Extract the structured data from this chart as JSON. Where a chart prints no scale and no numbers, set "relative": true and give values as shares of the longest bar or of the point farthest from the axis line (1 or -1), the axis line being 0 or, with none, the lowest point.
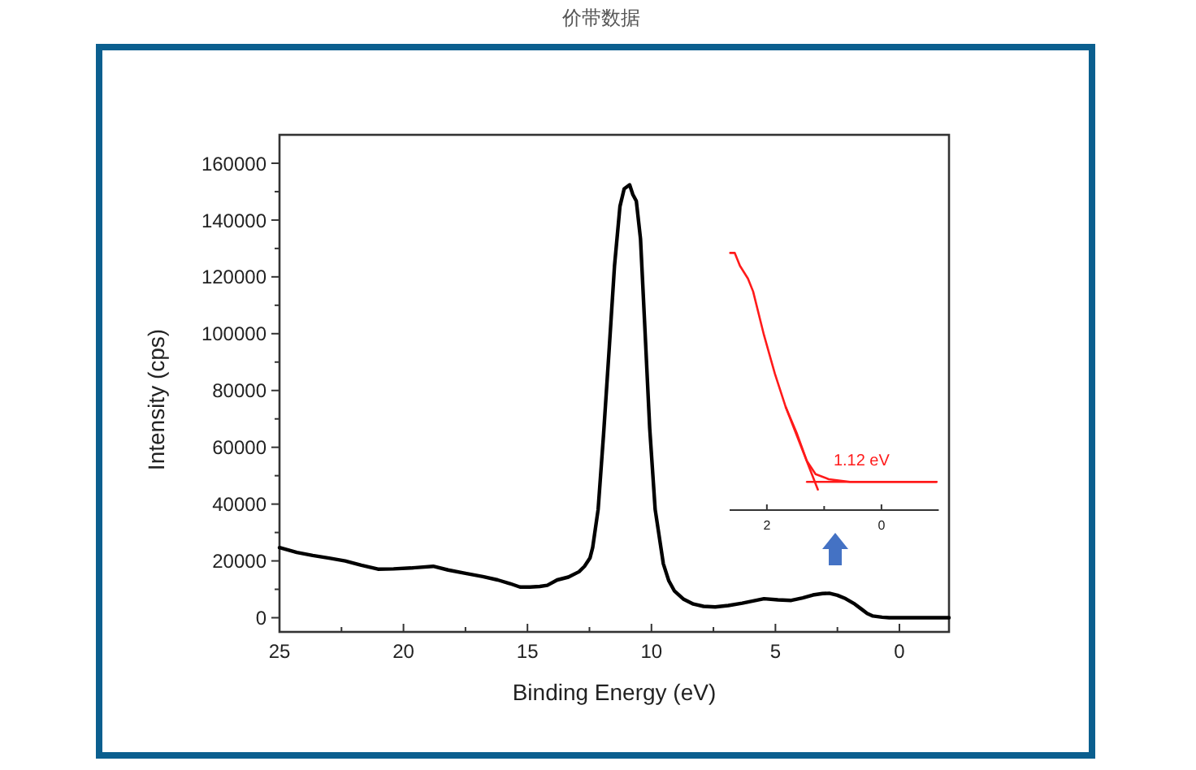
{
  "chart_data": [
    {
      "type": "line",
      "title": "价带数据",
      "xlabel": "Binding Energy (eV)",
      "ylabel": "Intensity (cps)",
      "x": [
        25,
        24.3,
        23.66,
        23,
        22.35,
        21.7,
        21.03,
        20.4,
        19.7,
        18.8,
        18.2,
        17.5,
        16.8,
        16.2,
        15.7,
        15.3,
        14.9,
        14.5,
        14.2,
        13.8,
        13.35,
        12.92,
        12.7,
        12.48,
        12.37,
        12.15,
        11.93,
        11.7,
        11.49,
        11.27,
        11.1,
        10.88,
        10.75,
        10.61,
        10.44,
        10.28,
        10.07,
        9.85,
        9.52,
        9.3,
        9.08,
        8.7,
        8.31,
        7.9,
        7.43,
        6.9,
        6.34,
        5.9,
        5.46,
        4.9,
        4.36,
        3.9,
        3.49,
        3.1,
        2.83,
        2.5,
        2.17,
        1.8,
        1.51,
        1.3,
        1.07,
        0.7,
        0.41,
        0,
        -1,
        -2
      ],
      "series": [
        {
          "color": "#000000",
          "values": [
            24700,
            23000,
            21900,
            21000,
            20000,
            18500,
            17100,
            17200,
            17500,
            18100,
            16800,
            15600,
            14500,
            13300,
            12000,
            10800,
            10800,
            11000,
            11400,
            13300,
            14300,
            16200,
            18100,
            21000,
            24700,
            38100,
            64700,
            95200,
            123800,
            144800,
            151000,
            152400,
            149000,
            146700,
            133300,
            104700,
            66700,
            38100,
            19000,
            13000,
            9500,
            6500,
            4800,
            4000,
            3800,
            4300,
            5100,
            5900,
            6700,
            6300,
            6100,
            7000,
            8000,
            8500,
            8600,
            7900,
            6700,
            4800,
            2900,
            1500,
            600,
            200,
            0,
            0,
            0,
            0
          ]
        }
      ],
      "xlim": [
        25,
        -2
      ],
      "ylim": [
        -5000,
        170000
      ],
      "xticks": [
        25,
        {
          "value": 22.5,
          "label": null
        },
        20,
        {
          "value": 17.5,
          "label": null
        },
        15,
        {
          "value": 12.5,
          "label": null
        },
        10,
        {
          "value": 7.5,
          "label": null
        },
        5,
        {
          "value": 2.5,
          "label": null
        },
        0
      ],
      "yticks": [
        0,
        {
          "value": 10000,
          "label": null
        },
        20000,
        {
          "value": 30000,
          "label": null
        },
        40000,
        {
          "value": 50000,
          "label": null
        },
        60000,
        {
          "value": 70000,
          "label": null
        },
        80000,
        {
          "value": 90000,
          "label": null
        },
        100000,
        {
          "value": 110000,
          "label": null
        },
        120000,
        {
          "value": 130000,
          "label": null
        },
        140000,
        {
          "value": 150000,
          "label": null
        },
        160000
      ]
    },
    {
      "type": "line",
      "relative": true,
      "series": [
        {
          "color": "#ff1a1a",
          "x": [
            2.64,
            2.56,
            2.47,
            2.33,
            2.24,
            2.05,
            1.86,
            1.67,
            1.48,
            1.3,
            1.15,
            0.92,
            0.55,
            0.08,
            -0.49,
            -0.96
          ],
          "values": [
            1,
            1,
            0.95,
            0.9,
            0.85,
            0.68,
            0.53,
            0.4,
            0.3,
            0.19,
            0.14,
            0.12,
            0.11,
            0.11,
            0.11,
            0.11
          ]
        },
        {
          "color": "#ff1a1a",
          "x": [
            1.67,
            1.11
          ],
          "values": [
            0.4,
            0.08
          ]
        },
        {
          "color": "#ff1a1a",
          "x": [
            1.3,
            -0.96
          ],
          "values": [
            0.11,
            0.11
          ]
        }
      ],
      "xlim": [
        2.65,
        -1
      ],
      "xticks": [
        2,
        {
          "value": 1,
          "label": null
        },
        0
      ],
      "annotations": [
        {
          "text": "1.12 eV",
          "x": 1.12,
          "y": 0.11
        }
      ]
    }
  ]
}
